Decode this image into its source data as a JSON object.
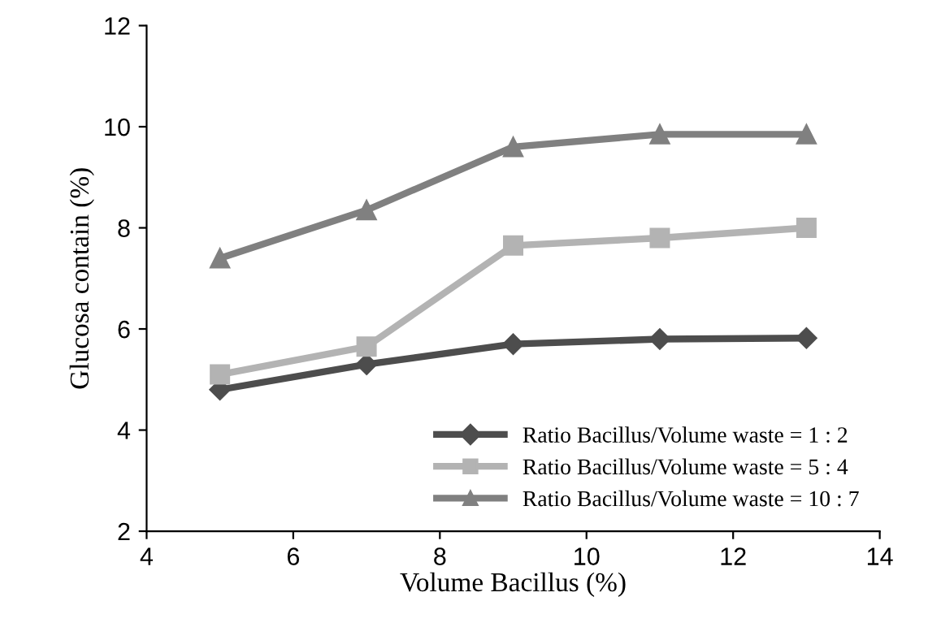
{
  "chart_data": {
    "type": "line",
    "xlabel": "Volume Bacillus (%)",
    "ylabel": "Glucosa contain (%)",
    "x": [
      5,
      7,
      9,
      11,
      13
    ],
    "xlim": [
      4,
      14
    ],
    "xticks": [
      4,
      6,
      8,
      10,
      12,
      14
    ],
    "ylim": [
      2,
      12
    ],
    "yticks": [
      2,
      4,
      6,
      8,
      10,
      12
    ],
    "grid": false,
    "legend": "bottom right",
    "line_style": "solid",
    "series": [
      {
        "name": "Ratio Bacillus/Volume waste = 1 : 2",
        "color": "#4d4d4d",
        "marker": "diamond",
        "values": [
          4.8,
          5.3,
          5.7,
          5.8,
          5.82
        ]
      },
      {
        "name": "Ratio Bacillus/Volume waste = 5 : 4",
        "color": "#b3b3b3",
        "marker": "square",
        "values": [
          5.1,
          5.65,
          7.65,
          7.8,
          8.0
        ]
      },
      {
        "name": "Ratio Bacillus/Volume waste = 10 : 7",
        "color": "#808080",
        "marker": "triangle",
        "values": [
          7.4,
          8.35,
          9.6,
          9.85,
          9.85
        ]
      }
    ]
  }
}
